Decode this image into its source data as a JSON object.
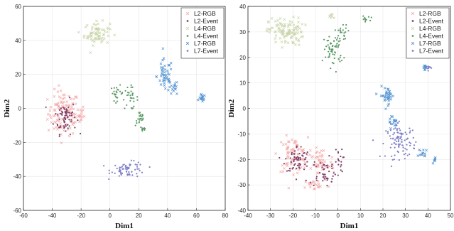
{
  "chart_data": [
    {
      "type": "scatter",
      "xlabel": "Dim1",
      "ylabel": "Dim2",
      "xlim": [
        -60,
        80
      ],
      "ylim": [
        -60,
        60
      ],
      "xticks": [
        -60,
        -40,
        -20,
        0,
        20,
        40,
        60,
        80
      ],
      "yticks": [
        -60,
        -40,
        -20,
        0,
        20,
        40,
        60
      ],
      "grid": true,
      "legend": "top-right",
      "series": [
        {
          "name": "L2-RGB",
          "marker": "x",
          "color": "#f4a8a8",
          "clusters": [
            {
              "cx": -32,
              "cy": -3,
              "sx": 10,
              "sy": 12,
              "n": 110
            },
            {
              "cx": -22,
              "cy": -4,
              "sx": 4,
              "sy": 6,
              "n": 20
            }
          ]
        },
        {
          "name": "L2-Event",
          "marker": "dot",
          "color": "#7f4068",
          "clusters": [
            {
              "cx": -31,
              "cy": -5,
              "sx": 7,
              "sy": 9,
              "n": 70
            }
          ]
        },
        {
          "name": "L4-RGB",
          "marker": "x",
          "color": "#c8d4a8",
          "clusters": [
            {
              "cx": -9,
              "cy": 44,
              "sx": 8,
              "sy": 6,
              "n": 70
            }
          ]
        },
        {
          "name": "L4-Event",
          "marker": "dot",
          "color": "#5c9a68",
          "clusters": [
            {
              "cx": 5,
              "cy": 9,
              "sx": 4,
              "sy": 4,
              "n": 25
            },
            {
              "cx": 14,
              "cy": 6,
              "sx": 5,
              "sy": 6,
              "n": 30
            },
            {
              "cx": 21,
              "cy": -6,
              "sx": 3,
              "sy": 4,
              "n": 20
            },
            {
              "cx": 23,
              "cy": -12,
              "sx": 2,
              "sy": 2,
              "n": 10
            }
          ]
        },
        {
          "name": "L7-RGB",
          "marker": "x",
          "color": "#4d8fd0",
          "clusters": [
            {
              "cx": 38,
              "cy": 19,
              "sx": 5,
              "sy": 9,
              "n": 45
            },
            {
              "cx": 44,
              "cy": 12,
              "sx": 3,
              "sy": 4,
              "n": 15
            },
            {
              "cx": 64,
              "cy": 6,
              "sx": 2,
              "sy": 2,
              "n": 15
            }
          ]
        },
        {
          "name": "L7-Event",
          "marker": "dot",
          "color": "#8080c8",
          "clusters": [
            {
              "cx": 13,
              "cy": -36,
              "sx": 11,
              "sy": 4,
              "n": 65
            }
          ]
        }
      ]
    },
    {
      "type": "scatter",
      "xlabel": "Dim1",
      "ylabel": "Dim2",
      "xlim": [
        -40,
        50
      ],
      "ylim": [
        -40,
        40
      ],
      "xticks": [
        -40,
        -30,
        -20,
        -10,
        0,
        10,
        20,
        30,
        40,
        50
      ],
      "yticks": [
        -40,
        -30,
        -20,
        -10,
        0,
        10,
        20,
        30,
        40
      ],
      "grid": true,
      "legend": "top-right",
      "series": [
        {
          "name": "L2-RGB",
          "marker": "x",
          "color": "#f4a8a8",
          "clusters": [
            {
              "cx": -20,
              "cy": -18,
              "sx": 6,
              "sy": 6,
              "n": 80
            },
            {
              "cx": -8,
              "cy": -22,
              "sx": 6,
              "sy": 6,
              "n": 50
            },
            {
              "cx": -10,
              "cy": -30,
              "sx": 5,
              "sy": 2,
              "n": 20
            }
          ]
        },
        {
          "name": "L2-Event",
          "marker": "dot",
          "color": "#7f4068",
          "clusters": [
            {
              "cx": -18,
              "cy": -20,
              "sx": 5,
              "sy": 5,
              "n": 60
            },
            {
              "cx": -6,
              "cy": -25,
              "sx": 6,
              "sy": 5,
              "n": 50
            },
            {
              "cx": 0,
              "cy": -20,
              "sx": 2,
              "sy": 4,
              "n": 15
            }
          ]
        },
        {
          "name": "L4-RGB",
          "marker": "x",
          "color": "#c8d4a8",
          "clusters": [
            {
              "cx": -23,
              "cy": 30,
              "sx": 7,
              "sy": 5,
              "n": 110
            },
            {
              "cx": -3,
              "cy": 36,
              "sx": 1,
              "sy": 1,
              "n": 8
            }
          ]
        },
        {
          "name": "L4-Event",
          "marker": "dot",
          "color": "#5c9a68",
          "clusters": [
            {
              "cx": -2,
              "cy": 23,
              "sx": 4,
              "sy": 6,
              "n": 60
            },
            {
              "cx": 2,
              "cy": 30,
              "sx": 3,
              "sy": 3,
              "n": 20
            },
            {
              "cx": 12,
              "cy": 35,
              "sx": 2,
              "sy": 1,
              "n": 12
            }
          ]
        },
        {
          "name": "L7-RGB",
          "marker": "x",
          "color": "#4d8fd0",
          "clusters": [
            {
              "cx": 22,
              "cy": 5,
              "sx": 3,
              "sy": 3,
              "n": 35
            },
            {
              "cx": 24,
              "cy": -5,
              "sx": 2,
              "sy": 2,
              "n": 15
            },
            {
              "cx": 38,
              "cy": -18,
              "sx": 2,
              "sy": 2,
              "n": 12
            },
            {
              "cx": 39,
              "cy": 16,
              "sx": 1,
              "sy": 1,
              "n": 10
            },
            {
              "cx": 43,
              "cy": -20,
              "sx": 1,
              "sy": 1,
              "n": 6
            }
          ]
        },
        {
          "name": "L7-Event",
          "marker": "dot",
          "color": "#8080c8",
          "clusters": [
            {
              "cx": 28,
              "cy": -13,
              "sx": 6,
              "sy": 6,
              "n": 100
            },
            {
              "cx": 40,
              "cy": 16,
              "sx": 1,
              "sy": 1,
              "n": 10
            }
          ]
        }
      ]
    }
  ]
}
